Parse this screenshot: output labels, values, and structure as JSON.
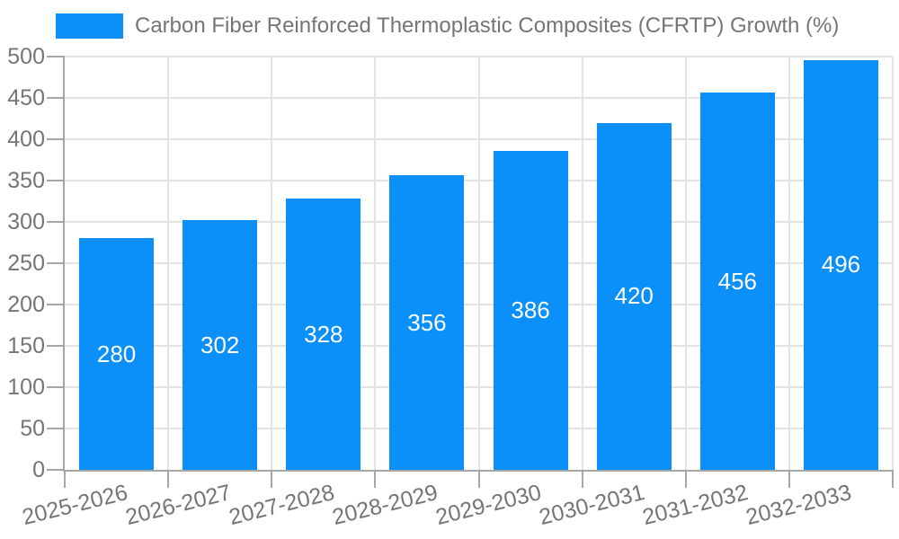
{
  "chart_data": {
    "type": "bar",
    "legend_label": "Carbon Fiber Reinforced Thermoplastic Composites (CFRTP) Growth (%)",
    "categories": [
      "2025-2026",
      "2026-2027",
      "2027-2028",
      "2028-2029",
      "2029-2030",
      "2030-2031",
      "2031-2032",
      "2032-2033"
    ],
    "values": [
      280,
      302,
      328,
      356,
      386,
      420,
      456,
      496
    ],
    "yticks": [
      0,
      50,
      100,
      150,
      200,
      250,
      300,
      350,
      400,
      450,
      500
    ],
    "ylim": [
      0,
      500
    ],
    "title": "",
    "xlabel": "",
    "ylabel": "",
    "grid": true,
    "legend_position": "top-left",
    "value_labels_inside_bars": true,
    "x_label_rotation_deg": -14,
    "colors": {
      "bar": "#0b90fa",
      "axis_line": "#a6a6a6",
      "gridline": "#e3e3e3",
      "tick_label": "#757575",
      "value_label": "#ffffff",
      "background": "#ffffff"
    }
  }
}
